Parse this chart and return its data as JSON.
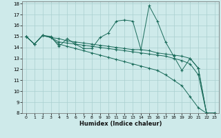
{
  "xlabel": "Humidex (Indice chaleur)",
  "xlim": [
    -0.5,
    23.5
  ],
  "ylim": [
    8,
    18.2
  ],
  "yticks": [
    8,
    9,
    10,
    11,
    12,
    13,
    14,
    15,
    16,
    17,
    18
  ],
  "xticks": [
    0,
    1,
    2,
    3,
    4,
    5,
    6,
    7,
    8,
    9,
    10,
    11,
    12,
    13,
    14,
    15,
    16,
    17,
    18,
    19,
    20,
    21,
    22,
    23
  ],
  "bg_color": "#ceeaea",
  "grid_color": "#aacfcf",
  "line_color": "#1a6b5a",
  "series": [
    [
      15.0,
      14.3,
      15.1,
      15.0,
      14.1,
      14.8,
      14.3,
      13.9,
      13.9,
      14.9,
      15.3,
      16.4,
      16.5,
      16.4,
      13.8,
      17.8,
      16.4,
      14.5,
      13.2,
      11.9,
      13.0,
      12.1,
      8.0,
      8.0
    ],
    [
      15.0,
      14.3,
      15.1,
      14.9,
      14.8,
      14.6,
      14.5,
      14.4,
      14.3,
      14.2,
      14.1,
      14.0,
      13.9,
      13.8,
      13.8,
      13.7,
      13.5,
      13.4,
      13.3,
      13.2,
      13.0,
      12.1,
      8.0,
      8.0
    ],
    [
      15.0,
      14.3,
      15.1,
      14.9,
      14.3,
      14.1,
      13.9,
      13.7,
      13.5,
      13.3,
      13.1,
      12.9,
      12.7,
      12.5,
      12.3,
      12.1,
      11.9,
      11.5,
      11.0,
      10.5,
      9.5,
      8.5,
      8.0,
      8.0
    ],
    [
      15.0,
      14.3,
      15.1,
      14.9,
      14.5,
      14.4,
      14.3,
      14.2,
      14.1,
      14.0,
      13.9,
      13.8,
      13.7,
      13.6,
      13.5,
      13.4,
      13.3,
      13.2,
      13.0,
      12.8,
      12.5,
      11.5,
      8.0,
      8.0
    ]
  ]
}
